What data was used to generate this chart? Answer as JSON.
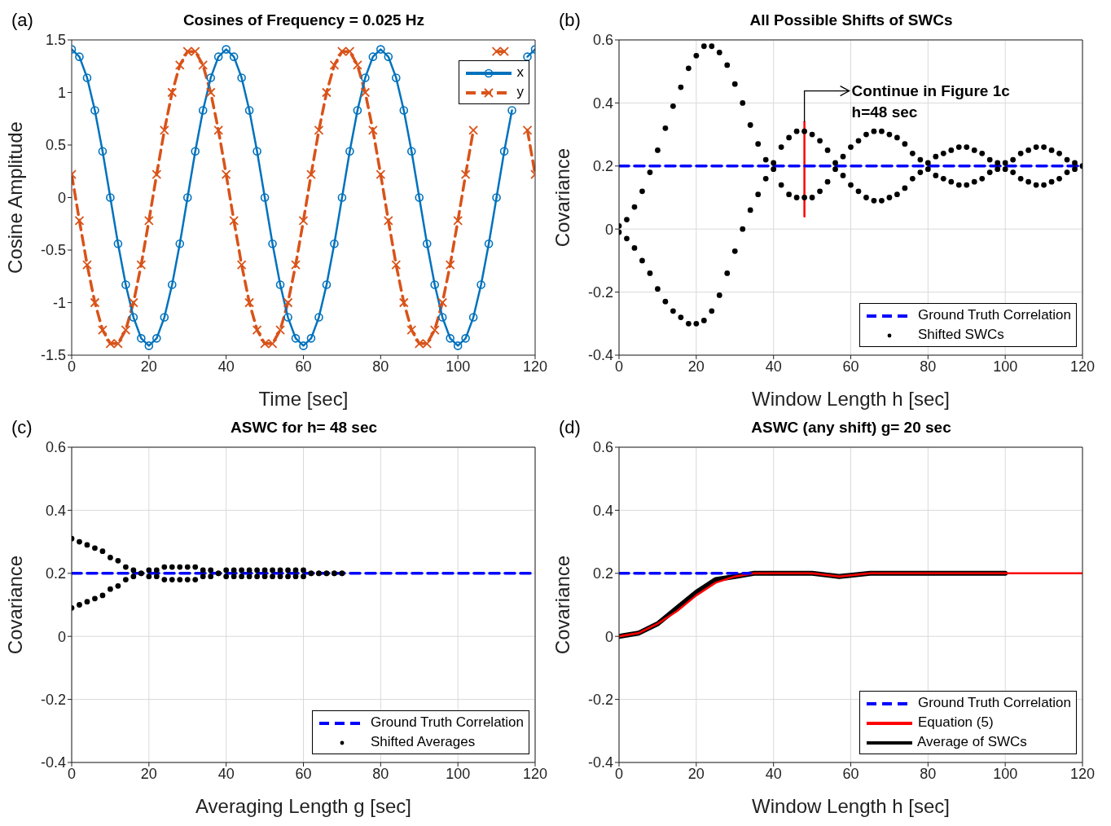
{
  "chart_data": [
    {
      "type": "line",
      "title": "Cosines of Frequency = 0.025 Hz",
      "xlabel": "Time [sec]",
      "ylabel": "Cosine Amplitude",
      "annotations": [
        "(a)"
      ],
      "x": [
        0,
        2,
        4,
        6,
        8,
        10,
        12,
        14,
        16,
        18,
        20,
        22,
        24,
        26,
        28,
        30,
        32,
        34,
        36,
        38,
        40,
        42,
        44,
        46,
        48,
        50,
        52,
        54,
        56,
        58,
        60,
        62,
        64,
        66,
        68,
        70,
        72,
        74,
        76,
        78,
        80,
        82,
        84,
        86,
        88,
        90,
        92,
        94,
        96,
        98,
        100,
        102,
        104,
        106,
        108,
        110,
        112,
        114,
        116,
        118,
        120
      ],
      "series": [
        {
          "name": "x",
          "color": "#0072bd",
          "marker": "circle",
          "line_style": "solid",
          "values": [
            1.41,
            1.34,
            1.14,
            0.83,
            0.44,
            0,
            -0.44,
            -0.83,
            -1.14,
            -1.34,
            -1.41,
            -1.34,
            -1.14,
            -0.83,
            -0.44,
            0,
            0.44,
            0.83,
            1.14,
            1.34,
            1.41,
            1.34,
            1.14,
            0.83,
            0.44,
            0,
            -0.44,
            -0.83,
            -1.14,
            -1.34,
            -1.41,
            -1.34,
            -1.14,
            -0.83,
            -0.44,
            0,
            0.44,
            0.83,
            1.14,
            1.34,
            1.41,
            1.34,
            1.14,
            0.83,
            0.44,
            0,
            -0.44,
            -0.83,
            -1.14,
            -1.34,
            -1.41,
            -1.34,
            -1.14,
            -0.83,
            -0.44,
            0,
            0.44,
            0.83,
            null,
            1.34,
            1.41
          ]
        },
        {
          "name": "y",
          "color": "#d95319",
          "marker": "cross",
          "line_style": "dashed",
          "values": [
            0.22,
            -0.22,
            -0.64,
            -1.0,
            -1.26,
            -1.39,
            -1.39,
            -1.26,
            -1.0,
            -0.64,
            -0.22,
            0.22,
            0.64,
            1.0,
            1.26,
            1.39,
            1.39,
            1.26,
            1.0,
            0.64,
            0.22,
            -0.22,
            -0.64,
            -1.0,
            -1.26,
            -1.39,
            -1.39,
            -1.26,
            -1.0,
            -0.64,
            -0.22,
            0.22,
            0.64,
            1.0,
            1.26,
            1.39,
            1.39,
            1.26,
            1.0,
            0.64,
            0.22,
            -0.22,
            -0.64,
            -1.0,
            -1.26,
            -1.39,
            -1.39,
            -1.26,
            -1.0,
            -0.64,
            -0.22,
            0.22,
            0.64,
            null,
            null,
            1.39,
            1.39,
            null,
            null,
            0.64,
            0.22
          ]
        }
      ],
      "xlim": [
        0,
        120
      ],
      "xticks": [
        0,
        20,
        40,
        60,
        80,
        100,
        120
      ],
      "ylim": [
        -1.5,
        1.5
      ],
      "yticks": [
        -1.5,
        -1,
        -0.5,
        0,
        0.5,
        1,
        1.5
      ],
      "grid": false,
      "legend": "top right"
    },
    {
      "type": "scatter",
      "title": "All Possible Shifts of SWCs",
      "xlabel": "Window Length h [sec]",
      "ylabel": "Covariance",
      "annotations": [
        "(b)",
        {
          "text": "Continue in Figure 1c\nh=48 sec",
          "x": 48,
          "y": 0.34
        }
      ],
      "series": [
        {
          "name": "Ground Truth Correlation",
          "type": "line",
          "color": "#0000ff",
          "line_style": "dashed",
          "marker": "none",
          "x": [
            0,
            120
          ],
          "values": [
            0.2,
            0.2
          ]
        },
        {
          "name": "Shifted SWCs",
          "color": "#000000",
          "marker": "circle",
          "x": [
            0,
            2,
            4,
            6,
            8,
            10,
            12,
            14,
            16,
            18,
            20,
            22,
            24,
            26,
            28,
            30,
            32,
            34,
            36,
            38,
            40,
            42,
            44,
            46,
            48,
            50,
            52,
            54,
            56,
            58,
            60,
            62,
            64,
            66,
            68,
            70,
            72,
            74,
            76,
            78,
            80,
            82,
            84,
            86,
            88,
            90,
            92,
            94,
            96,
            98,
            100,
            102,
            104,
            106,
            108,
            110,
            112,
            114,
            116,
            118,
            120,
            0,
            2,
            4,
            6,
            8,
            10,
            12,
            14,
            16,
            18,
            20,
            22,
            24,
            26,
            28,
            30,
            32,
            34,
            36,
            38,
            40,
            42,
            44,
            46,
            48,
            50,
            52,
            54,
            56,
            58,
            60,
            62,
            64,
            66,
            68,
            70,
            72,
            74,
            76,
            78,
            80,
            82,
            84,
            86,
            88,
            90,
            92,
            94,
            96,
            98,
            100,
            102,
            104,
            106,
            108,
            110,
            112,
            114,
            116,
            118,
            120
          ],
          "values": [
            0.01,
            0.03,
            0.07,
            0.12,
            0.18,
            0.25,
            0.32,
            0.39,
            0.45,
            0.51,
            0.55,
            0.58,
            0.58,
            0.56,
            0.52,
            0.46,
            0.4,
            0.33,
            0.27,
            0.22,
            0.21,
            0.26,
            0.29,
            0.31,
            0.31,
            0.3,
            0.28,
            0.25,
            0.21,
            0.23,
            0.26,
            0.28,
            0.3,
            0.31,
            0.31,
            0.3,
            0.29,
            0.27,
            0.24,
            0.22,
            0.21,
            0.23,
            0.24,
            0.25,
            0.26,
            0.26,
            0.25,
            0.24,
            0.22,
            0.21,
            0.21,
            0.22,
            0.24,
            0.25,
            0.26,
            0.26,
            0.25,
            0.24,
            0.22,
            0.21,
            0.2,
            -0.01,
            -0.03,
            -0.06,
            -0.1,
            -0.14,
            -0.19,
            -0.23,
            -0.26,
            -0.28,
            -0.3,
            -0.3,
            -0.29,
            -0.26,
            -0.21,
            -0.14,
            -0.07,
            0.0,
            0.06,
            0.11,
            0.16,
            0.19,
            0.14,
            0.11,
            0.1,
            0.1,
            0.1,
            0.12,
            0.15,
            0.19,
            0.17,
            0.14,
            0.12,
            0.1,
            0.09,
            0.09,
            0.1,
            0.11,
            0.13,
            0.16,
            0.18,
            0.19,
            0.17,
            0.16,
            0.15,
            0.14,
            0.14,
            0.15,
            0.16,
            0.18,
            0.19,
            0.19,
            0.18,
            0.16,
            0.15,
            0.14,
            0.14,
            0.15,
            0.16,
            0.18,
            0.19,
            0.2
          ]
        },
        {
          "type": "line",
          "color": "#ff0000",
          "line_style": "solid",
          "marker": "none",
          "x": [
            48,
            48
          ],
          "values": [
            0.04,
            0.34
          ]
        }
      ],
      "xlim": [
        0,
        120
      ],
      "xticks": [
        0,
        20,
        40,
        60,
        80,
        100,
        120
      ],
      "ylim": [
        -0.4,
        0.6
      ],
      "yticks": [
        -0.4,
        -0.2,
        0,
        0.2,
        0.4,
        0.6
      ],
      "grid": true,
      "legend": "bottom right"
    },
    {
      "type": "scatter",
      "title": "ASWC for h= 48 sec",
      "xlabel": "Averaging Length g [sec]",
      "ylabel": "Covariance",
      "annotations": [
        "(c)"
      ],
      "series": [
        {
          "name": "Ground Truth Correlation",
          "type": "line",
          "color": "#0000ff",
          "line_style": "dashed",
          "marker": "none",
          "x": [
            0,
            120
          ],
          "values": [
            0.2,
            0.2
          ]
        },
        {
          "name": "Shifted Averages",
          "color": "#000000",
          "marker": "circle",
          "x": [
            0,
            2,
            4,
            6,
            8,
            10,
            12,
            14,
            16,
            18,
            20,
            22,
            24,
            26,
            28,
            30,
            32,
            34,
            36,
            38,
            40,
            42,
            44,
            46,
            48,
            50,
            52,
            54,
            56,
            58,
            60,
            62,
            64,
            66,
            68,
            70,
            0,
            2,
            4,
            6,
            8,
            10,
            12,
            14,
            16,
            18,
            20,
            22,
            24,
            26,
            28,
            30,
            32,
            34,
            36,
            38,
            40,
            42,
            44,
            46,
            48,
            50,
            52,
            54,
            56,
            58,
            60,
            62,
            64,
            66,
            68,
            70
          ],
          "values": [
            0.31,
            0.3,
            0.29,
            0.28,
            0.27,
            0.25,
            0.24,
            0.22,
            0.21,
            0.2,
            0.21,
            0.21,
            0.22,
            0.22,
            0.22,
            0.22,
            0.22,
            0.21,
            0.21,
            0.2,
            0.21,
            0.21,
            0.21,
            0.21,
            0.21,
            0.21,
            0.21,
            0.21,
            0.21,
            0.21,
            0.21,
            0.2,
            0.2,
            0.2,
            0.2,
            0.2,
            0.09,
            0.1,
            0.11,
            0.12,
            0.13,
            0.15,
            0.16,
            0.18,
            0.19,
            0.2,
            0.19,
            0.19,
            0.18,
            0.18,
            0.18,
            0.18,
            0.18,
            0.19,
            0.19,
            0.2,
            0.19,
            0.19,
            0.19,
            0.19,
            0.19,
            0.19,
            0.19,
            0.19,
            0.19,
            0.19,
            0.19,
            0.2,
            0.2,
            0.2,
            0.2,
            0.2
          ]
        }
      ],
      "xlim": [
        0,
        120
      ],
      "xticks": [
        0,
        20,
        40,
        60,
        80,
        100,
        120
      ],
      "ylim": [
        -0.4,
        0.6
      ],
      "yticks": [
        -0.4,
        -0.2,
        0,
        0.2,
        0.4,
        0.6
      ],
      "grid": true,
      "legend": "bottom right"
    },
    {
      "type": "line",
      "title": "ASWC (any shift) g= 20 sec",
      "xlabel": "Window Length h [sec]",
      "ylabel": "Covariance",
      "annotations": [
        "(d)"
      ],
      "series": [
        {
          "name": "Ground Truth Correlation",
          "type": "line",
          "color": "#0000ff",
          "line_style": "dashed",
          "marker": "none",
          "x": [
            0,
            34
          ],
          "values": [
            0.2,
            0.2
          ]
        },
        {
          "name": "Equation (5)",
          "color": "#ff0000",
          "line_style": "solid",
          "marker": "none",
          "x": [
            0,
            5,
            10,
            15,
            20,
            25,
            30,
            35,
            40,
            50,
            57,
            65,
            80,
            100,
            120
          ],
          "values": [
            0,
            0.01,
            0.04,
            0.08,
            0.13,
            0.17,
            0.19,
            0.2,
            0.2,
            0.2,
            0.19,
            0.2,
            0.2,
            0.2,
            0.2
          ]
        },
        {
          "name": "Average of SWCs",
          "color": "#000000",
          "line_style": "solid",
          "marker": "none",
          "x": [
            0,
            5,
            10,
            15,
            20,
            25,
            30,
            35,
            40,
            50,
            57,
            65,
            80,
            100
          ],
          "values": [
            0,
            0.01,
            0.04,
            0.09,
            0.14,
            0.18,
            0.19,
            0.2,
            0.2,
            0.2,
            0.19,
            0.2,
            0.2,
            0.2
          ]
        }
      ],
      "xlim": [
        0,
        120
      ],
      "xticks": [
        0,
        20,
        40,
        60,
        80,
        100,
        120
      ],
      "ylim": [
        -0.4,
        0.6
      ],
      "yticks": [
        -0.4,
        -0.2,
        0,
        0.2,
        0.4,
        0.6
      ],
      "grid": true,
      "legend": "bottom right"
    }
  ]
}
